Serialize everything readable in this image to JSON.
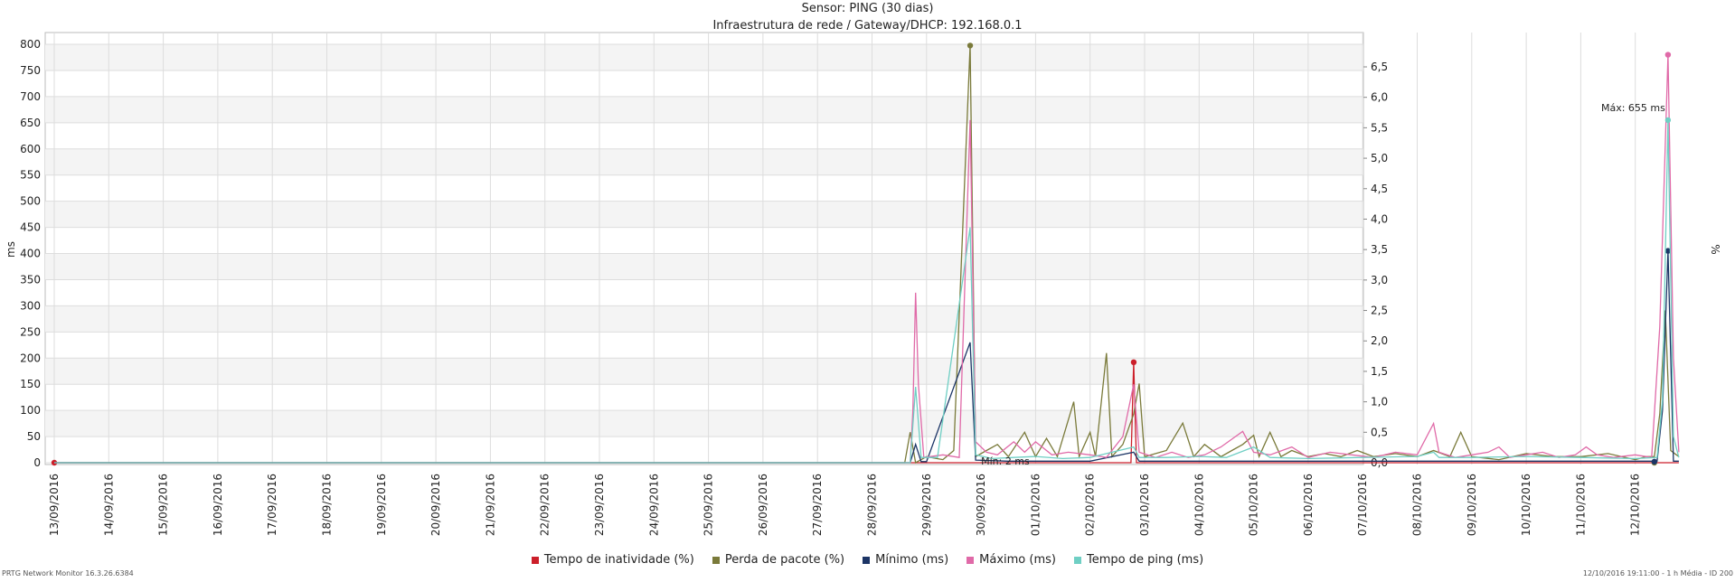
{
  "header": {
    "title": "Sensor: PING (30 dias)",
    "subtitle": "Infraestrutura de rede / Gateway/DHCP: 192.168.0.1"
  },
  "footer": {
    "left": "PRTG Network Monitor 16.3.26.6384",
    "right": "12/10/2016 19:11:00 - 1 h Média - ID 200"
  },
  "chart_data": {
    "type": "line",
    "ylabel_left": "ms",
    "ylabel_right": "%",
    "ylim_left": [
      0,
      830
    ],
    "ylim_right": [
      0,
      6.9
    ],
    "yticks_left": [
      "0",
      "50",
      "100",
      "150",
      "200",
      "250",
      "300",
      "350",
      "400",
      "450",
      "500",
      "550",
      "600",
      "650",
      "700",
      "750",
      "800"
    ],
    "yticks_right": [
      "0,0",
      "0,5",
      "1,0",
      "1,5",
      "2,0",
      "2,5",
      "3,0",
      "3,5",
      "4,0",
      "4,5",
      "5,0",
      "5,5",
      "6,0",
      "6,5"
    ],
    "x_ticks": [
      "13/09/2016",
      "14/09/2016",
      "15/09/2016",
      "16/09/2016",
      "17/09/2016",
      "18/09/2016",
      "19/09/2016",
      "20/09/2016",
      "21/09/2016",
      "22/09/2016",
      "23/09/2016",
      "24/09/2016",
      "25/09/2016",
      "26/09/2016",
      "27/09/2016",
      "28/09/2016",
      "29/09/2016",
      "30/09/2016",
      "01/10/2016",
      "02/10/2016",
      "03/10/2016",
      "04/10/2016",
      "05/10/2016",
      "06/10/2016",
      "07/10/2016",
      "08/10/2016",
      "09/10/2016",
      "10/10/2016",
      "11/10/2016",
      "12/10/2016"
    ],
    "x_range_days": [
      0,
      29.8
    ],
    "annotations": [
      {
        "text": "Mín: 2 ms",
        "x": 17.0,
        "y": 2
      },
      {
        "text": "Máx: 655 ms",
        "x": 29.6,
        "y": 655
      }
    ],
    "series": [
      {
        "name": "Tempo de inatividade (%)",
        "axis": "right",
        "color": "#cc1f2a",
        "points": [
          [
            0,
            0
          ],
          [
            15.8,
            0
          ],
          [
            19.75,
            0
          ],
          [
            19.8,
            1.65
          ],
          [
            19.85,
            0
          ],
          [
            29.8,
            0
          ]
        ],
        "markers": [
          [
            0,
            0
          ],
          [
            19.8,
            1.65
          ]
        ]
      },
      {
        "name": "Perda de pacote (%)",
        "axis": "right",
        "color": "#7a7a3a",
        "points": [
          [
            0,
            0
          ],
          [
            15.6,
            0
          ],
          [
            15.7,
            0.5
          ],
          [
            15.8,
            0
          ],
          [
            16.0,
            0.1
          ],
          [
            16.3,
            0.05
          ],
          [
            16.5,
            0.2
          ],
          [
            16.8,
            6.85
          ],
          [
            16.9,
            0.1
          ],
          [
            17.1,
            0.2
          ],
          [
            17.3,
            0.3
          ],
          [
            17.5,
            0.1
          ],
          [
            17.8,
            0.5
          ],
          [
            18.0,
            0.1
          ],
          [
            18.2,
            0.4
          ],
          [
            18.4,
            0.1
          ],
          [
            18.7,
            1.0
          ],
          [
            18.8,
            0.1
          ],
          [
            19.0,
            0.5
          ],
          [
            19.1,
            0.1
          ],
          [
            19.3,
            1.8
          ],
          [
            19.4,
            0.1
          ],
          [
            19.6,
            0.3
          ],
          [
            19.8,
            0.8
          ],
          [
            19.9,
            1.3
          ],
          [
            20.0,
            0.1
          ],
          [
            20.4,
            0.2
          ],
          [
            20.7,
            0.65
          ],
          [
            20.9,
            0.1
          ],
          [
            21.1,
            0.3
          ],
          [
            21.4,
            0.1
          ],
          [
            21.6,
            0.2
          ],
          [
            21.8,
            0.3
          ],
          [
            22.0,
            0.45
          ],
          [
            22.1,
            0.1
          ],
          [
            22.3,
            0.5
          ],
          [
            22.5,
            0.1
          ],
          [
            22.7,
            0.2
          ],
          [
            23.0,
            0.1
          ],
          [
            23.3,
            0.15
          ],
          [
            23.6,
            0.1
          ],
          [
            23.9,
            0.2
          ],
          [
            24.2,
            0.1
          ],
          [
            24.6,
            0.15
          ],
          [
            25.0,
            0.1
          ],
          [
            25.3,
            0.2
          ],
          [
            25.6,
            0.1
          ],
          [
            25.8,
            0.5
          ],
          [
            26.0,
            0.1
          ],
          [
            26.5,
            0.05
          ],
          [
            27.0,
            0.15
          ],
          [
            27.5,
            0.1
          ],
          [
            28.0,
            0.1
          ],
          [
            28.5,
            0.15
          ],
          [
            29.0,
            0.05
          ],
          [
            29.2,
            0.1
          ],
          [
            29.35,
            0.1
          ],
          [
            29.45,
            0.8
          ],
          [
            29.55,
            2.5
          ],
          [
            29.65,
            0.2
          ],
          [
            29.8,
            0.1
          ]
        ],
        "markers": [
          [
            16.8,
            6.85
          ],
          [
            29.35,
            0
          ]
        ]
      },
      {
        "name": "Mínimo (ms)",
        "axis": "left",
        "color": "#1c3566",
        "points": [
          [
            0,
            0
          ],
          [
            15.7,
            0
          ],
          [
            15.8,
            35
          ],
          [
            15.9,
            2
          ],
          [
            16.0,
            2
          ],
          [
            16.8,
            230
          ],
          [
            16.9,
            5
          ],
          [
            17.5,
            3
          ],
          [
            18.0,
            3
          ],
          [
            19.0,
            3
          ],
          [
            19.8,
            20
          ],
          [
            19.9,
            3
          ],
          [
            21.0,
            3
          ],
          [
            22.0,
            3
          ],
          [
            24.0,
            3
          ],
          [
            26.0,
            3
          ],
          [
            28.0,
            3
          ],
          [
            29.2,
            3
          ],
          [
            29.4,
            3
          ],
          [
            29.5,
            100
          ],
          [
            29.6,
            405
          ],
          [
            29.7,
            3
          ],
          [
            29.8,
            3
          ]
        ],
        "markers": [
          [
            29.6,
            405
          ],
          [
            29.35,
            2
          ]
        ]
      },
      {
        "name": "Máximo (ms)",
        "axis": "left",
        "color": "#e06aa8",
        "points": [
          [
            0,
            0
          ],
          [
            15.7,
            0
          ],
          [
            15.75,
            100
          ],
          [
            15.8,
            325
          ],
          [
            15.85,
            150
          ],
          [
            15.95,
            10
          ],
          [
            16.3,
            15
          ],
          [
            16.6,
            10
          ],
          [
            16.8,
            655
          ],
          [
            16.9,
            40
          ],
          [
            17.1,
            20
          ],
          [
            17.3,
            15
          ],
          [
            17.6,
            40
          ],
          [
            17.8,
            20
          ],
          [
            18.0,
            40
          ],
          [
            18.3,
            15
          ],
          [
            18.6,
            20
          ],
          [
            19.0,
            15
          ],
          [
            19.3,
            10
          ],
          [
            19.6,
            50
          ],
          [
            19.8,
            150
          ],
          [
            19.9,
            20
          ],
          [
            20.2,
            10
          ],
          [
            20.5,
            20
          ],
          [
            20.8,
            10
          ],
          [
            21.1,
            15
          ],
          [
            21.4,
            30
          ],
          [
            21.8,
            60
          ],
          [
            22.0,
            20
          ],
          [
            22.3,
            15
          ],
          [
            22.7,
            30
          ],
          [
            23.0,
            10
          ],
          [
            23.4,
            20
          ],
          [
            23.8,
            15
          ],
          [
            24.2,
            10
          ],
          [
            24.6,
            20
          ],
          [
            25.0,
            15
          ],
          [
            25.3,
            75
          ],
          [
            25.4,
            20
          ],
          [
            25.7,
            10
          ],
          [
            26.0,
            15
          ],
          [
            26.3,
            20
          ],
          [
            26.5,
            30
          ],
          [
            26.7,
            10
          ],
          [
            27.0,
            15
          ],
          [
            27.3,
            20
          ],
          [
            27.6,
            10
          ],
          [
            27.9,
            15
          ],
          [
            28.1,
            30
          ],
          [
            28.3,
            15
          ],
          [
            28.6,
            10
          ],
          [
            29.0,
            15
          ],
          [
            29.3,
            10
          ],
          [
            29.45,
            260
          ],
          [
            29.6,
            780
          ],
          [
            29.7,
            200
          ],
          [
            29.8,
            20
          ]
        ],
        "markers": [
          [
            29.6,
            780
          ]
        ]
      },
      {
        "name": "Tempo de ping (ms)",
        "axis": "left",
        "color": "#6fcfc4",
        "points": [
          [
            0,
            0
          ],
          [
            15.7,
            0
          ],
          [
            15.8,
            145
          ],
          [
            15.9,
            10
          ],
          [
            16.2,
            10
          ],
          [
            16.8,
            450
          ],
          [
            16.9,
            15
          ],
          [
            17.2,
            8
          ],
          [
            17.6,
            10
          ],
          [
            18.0,
            12
          ],
          [
            18.5,
            8
          ],
          [
            19.0,
            10
          ],
          [
            19.8,
            30
          ],
          [
            19.9,
            10
          ],
          [
            20.4,
            10
          ],
          [
            21.0,
            12
          ],
          [
            21.5,
            10
          ],
          [
            22.0,
            30
          ],
          [
            22.3,
            10
          ],
          [
            23.0,
            8
          ],
          [
            24.0,
            10
          ],
          [
            25.0,
            12
          ],
          [
            25.3,
            20
          ],
          [
            25.4,
            10
          ],
          [
            26.0,
            10
          ],
          [
            27.0,
            12
          ],
          [
            28.0,
            10
          ],
          [
            29.0,
            8
          ],
          [
            29.4,
            10
          ],
          [
            29.5,
            120
          ],
          [
            29.6,
            655
          ],
          [
            29.7,
            50
          ],
          [
            29.8,
            10
          ]
        ],
        "markers": [
          [
            29.6,
            655
          ]
        ]
      }
    ]
  }
}
